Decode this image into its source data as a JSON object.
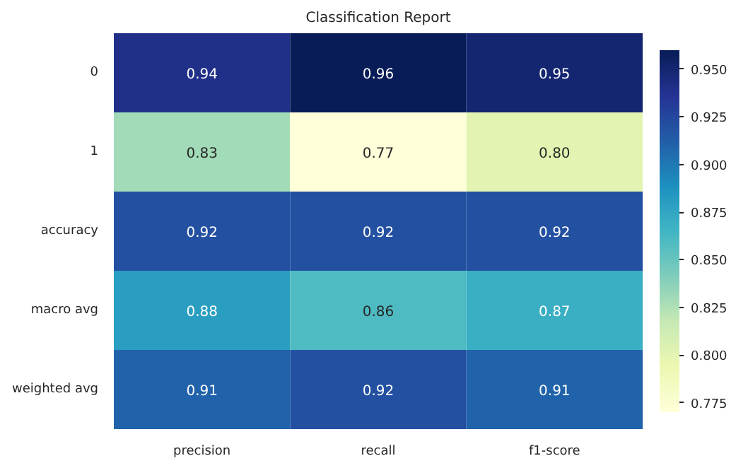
{
  "chart_data": {
    "type": "heatmap",
    "title": "Classification Report",
    "categories": [
      "precision",
      "recall",
      "f1-score"
    ],
    "y_categories": [
      "0",
      "1",
      "accuracy",
      "macro avg",
      "weighted avg"
    ],
    "cells": [
      [
        0.94,
        0.96,
        0.95
      ],
      [
        0.83,
        0.77,
        0.8
      ],
      [
        0.92,
        0.92,
        0.92
      ],
      [
        0.88,
        0.86,
        0.87
      ],
      [
        0.91,
        0.92,
        0.91
      ]
    ],
    "cell_labels": [
      [
        "0.94",
        "0.96",
        "0.95"
      ],
      [
        "0.83",
        "0.77",
        "0.80"
      ],
      [
        "0.92",
        "0.92",
        "0.92"
      ],
      [
        "0.88",
        "0.86",
        "0.87"
      ],
      [
        "0.91",
        "0.92",
        "0.91"
      ]
    ],
    "clim": [
      0.77,
      0.96
    ],
    "cticks": [
      0.775,
      {
        "value": 0.8,
        "label": "0.800"
      },
      0.825,
      {
        "value": 0.85,
        "label": "0.850"
      },
      0.875,
      {
        "value": 0.9,
        "label": "0.900"
      },
      0.925,
      {
        "value": 0.95,
        "label": "0.950"
      }
    ]
  }
}
